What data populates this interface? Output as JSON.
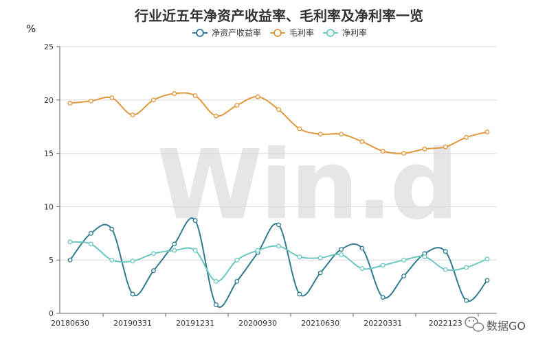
{
  "chart_data": {
    "type": "line",
    "title": "行业近五年净资产收益率、毛利率及净利率一览",
    "unit_label": "%",
    "ylim": [
      0,
      25
    ],
    "y_ticks": [
      0,
      5,
      10,
      15,
      20,
      25
    ],
    "x_tick_labels": [
      "20180630",
      "20190331",
      "20191231",
      "20200930",
      "20210630",
      "20220331",
      "2022123"
    ],
    "x_tick_label_indices": [
      0,
      3,
      6,
      9,
      12,
      15,
      18
    ],
    "x_count": 21,
    "legend_position": "top-center",
    "grid": true,
    "series": [
      {
        "name": "净资产收益率",
        "color": "#2f7a8e",
        "values": [
          5.0,
          7.5,
          7.9,
          1.8,
          4.0,
          6.5,
          8.7,
          0.8,
          3.0,
          5.7,
          8.3,
          1.8,
          3.8,
          6.0,
          6.1,
          1.5,
          3.5,
          5.6,
          5.8,
          1.2,
          3.1
        ]
      },
      {
        "name": "毛利率",
        "color": "#e0963a",
        "values": [
          19.7,
          19.9,
          20.2,
          18.6,
          20.0,
          20.6,
          20.4,
          18.5,
          19.5,
          20.3,
          19.1,
          17.3,
          16.8,
          16.8,
          16.1,
          15.2,
          15.0,
          15.4,
          15.6,
          16.5,
          17.0
        ]
      },
      {
        "name": "净利率",
        "color": "#6bc7c1",
        "values": [
          6.7,
          6.5,
          5.0,
          4.9,
          5.6,
          5.9,
          5.9,
          3.0,
          5.0,
          5.9,
          6.3,
          5.3,
          5.2,
          5.5,
          4.2,
          4.5,
          5.0,
          5.3,
          4.1,
          4.3,
          5.1
        ]
      }
    ]
  },
  "watermark": "Win.d",
  "brand": "数据GO",
  "brand_icon": "wechat-icon"
}
